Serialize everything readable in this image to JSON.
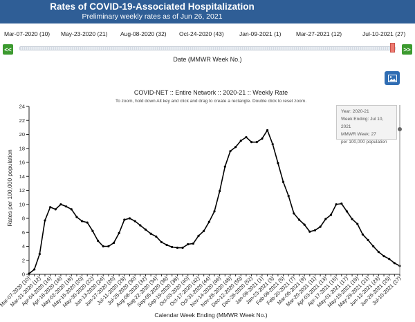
{
  "header": {
    "title": "Rates of COVID-19-Associated Hospitalization",
    "subtitle": "Preliminary weekly rates as of Jun 26, 2021"
  },
  "slider": {
    "labels": [
      "Mar-07-2020 (10)",
      "May-23-2020 (21)",
      "Aug-08-2020 (32)",
      "Oct-24-2020 (43)",
      "Jan-09-2021 (1)",
      "Mar-27-2021 (12)",
      "Jul-10-2021 (27)"
    ],
    "prev_label": "<<",
    "next_label": ">>",
    "axis_label": "Date (MMWR Week No.)",
    "position": 1.0
  },
  "tooltip": {
    "year": "Year: 2020-21",
    "week_ending": "Week Ending: Jul 10, 2021",
    "mmwr_week": "MMWR Week: 27",
    "per": "per 100,000 population"
  },
  "chart_data": {
    "type": "line",
    "title": "COVID-NET :: Entire Network :: 2020-21 :: Weekly Rate",
    "subtitle": "To zoom, hold down Alt key and click and drag to create a rectangle. Double click to reset zoom.",
    "xlabel": "Calendar Week Ending (MMWR Week No.)",
    "ylabel": "Rates per 100,000 population",
    "ylim": [
      0,
      24
    ],
    "yticks": [
      0,
      2,
      4,
      6,
      8,
      10,
      12,
      14,
      16,
      18,
      20,
      22,
      24
    ],
    "grid": false,
    "x": [
      "Mar-07-2020 (10)",
      "Mar-14-2020 (11)",
      "Mar-21-2020 (12)",
      "Mar-28-2020 (13)",
      "Apr-04-2020 (14)",
      "Apr-11-2020 (15)",
      "Apr-18-2020 (16)",
      "Apr-25-2020 (17)",
      "May-02-2020 (18)",
      "May-09-2020 (19)",
      "May-16-2020 (20)",
      "May-23-2020 (21)",
      "May-30-2020 (22)",
      "Jun-06-2020 (23)",
      "Jun-13-2020 (24)",
      "Jun-20-2020 (25)",
      "Jun-27-2020 (26)",
      "Jul-04-2020 (27)",
      "Jul-11-2020 (28)",
      "Jul-18-2020 (29)",
      "Jul-25-2020 (30)",
      "Aug-01-2020 (31)",
      "Aug-08-2020 (32)",
      "Aug-15-2020 (33)",
      "Aug-22-2020 (34)",
      "Aug-29-2020 (35)",
      "Sep-05-2020 (36)",
      "Sep-12-2020 (37)",
      "Sep-19-2020 (38)",
      "Sep-26-2020 (39)",
      "Oct-03-2020 (40)",
      "Oct-10-2020 (41)",
      "Oct-17-2020 (42)",
      "Oct-24-2020 (43)",
      "Oct-31-2020 (44)",
      "Nov-07-2020 (45)",
      "Nov-14-2020 (46)",
      "Nov-21-2020 (47)",
      "Nov-28-2020 (48)",
      "Dec-05-2020 (49)",
      "Dec-12-2020 (50)",
      "Dec-19-2020 (51)",
      "Dec-26-2020 (52)",
      "Jan-02-2021 (53)",
      "Jan-09-2021 (1)",
      "Jan-16-2021 (2)",
      "Jan-23-2021 (3)",
      "Jan-30-2021 (4)",
      "Feb-06-2021 (5)",
      "Feb-13-2021 (6)",
      "Feb-20-2021 (7)",
      "Feb-27-2021 (8)",
      "Mar-06-2021 (9)",
      "Mar-13-2021 (10)",
      "Mar-20-2021 (11)",
      "Mar-27-2021 (12)",
      "Apr-03-2021 (13)",
      "Apr-10-2021 (14)",
      "Apr-17-2021 (15)",
      "Apr-24-2021 (16)",
      "May-01-2021 (17)",
      "May-08-2021 (18)",
      "May-15-2021 (19)",
      "May-22-2021 (20)",
      "May-29-2021 (21)",
      "Jun-05-2021 (22)",
      "Jun-12-2021 (23)",
      "Jun-19-2021 (24)",
      "Jun-26-2021 (25)",
      "Jul-03-2021 (26)",
      "Jul-10-2021 (27)"
    ],
    "tick_labels": [
      "Mar-07-2020 (10)",
      "Mar-21-2020 (12)",
      "Apr-04-2020 (14)",
      "Apr-18-2020 (16)",
      "May-02-2020 (18)",
      "May-16-2020 (20)",
      "May-30-2020 (22)",
      "Jun-13-2020 (24)",
      "Jun-27-2020 (26)",
      "Jul-11-2020 (28)",
      "Jul-25-2020 (30)",
      "Aug-08-2020 (32)",
      "Aug-22-2020 (34)",
      "Sep-05-2020 (36)",
      "Sep-19-2020 (38)",
      "Oct-03-2020 (40)",
      "Oct-17-2020 (42)",
      "Oct-31-2020 (44)",
      "Nov-14-2020 (46)",
      "Nov-28-2020 (48)",
      "Dec-12-2020 (50)",
      "Dec-26-2020 (52)",
      "Jan-09-2021 (1)",
      "Jan-23-2021 (3)",
      "Feb-06-2021 (5)",
      "Feb-20-2021 (7)",
      "Mar-06-2021 (9)",
      "Mar-20-2021 (11)",
      "Apr-03-2021 (13)",
      "Apr-17-2021 (15)",
      "May-01-2021 (17)",
      "May-15-2021 (19)",
      "May-29-2021 (21)",
      "Jun-12-2021 (23)",
      "Jun-26-2021 (25)",
      "Jul-10-2021 (27)"
    ],
    "series": [
      {
        "values": [
          0.1,
          0.7,
          2.9,
          7.7,
          9.6,
          9.3,
          10.0,
          9.7,
          9.3,
          8.2,
          7.6,
          7.4,
          6.2,
          4.8,
          4.0,
          4.0,
          4.5,
          5.9,
          7.8,
          8.0,
          7.6,
          7.0,
          6.4,
          5.8,
          5.4,
          4.6,
          4.2,
          3.9,
          3.8,
          3.8,
          4.3,
          4.4,
          5.5,
          6.2,
          7.5,
          9.0,
          11.9,
          15.4,
          17.6,
          18.2,
          19.1,
          19.6,
          18.9,
          18.9,
          19.4,
          20.6,
          18.6,
          15.9,
          13.2,
          11.2,
          8.7,
          7.8,
          7.1,
          6.1,
          6.3,
          6.8,
          7.9,
          8.5,
          10.0,
          10.1,
          9.0,
          7.9,
          7.2,
          5.7,
          4.9,
          4.0,
          3.2,
          2.6,
          2.2,
          1.6,
          1.2
        ],
        "color": "#000000"
      }
    ]
  }
}
